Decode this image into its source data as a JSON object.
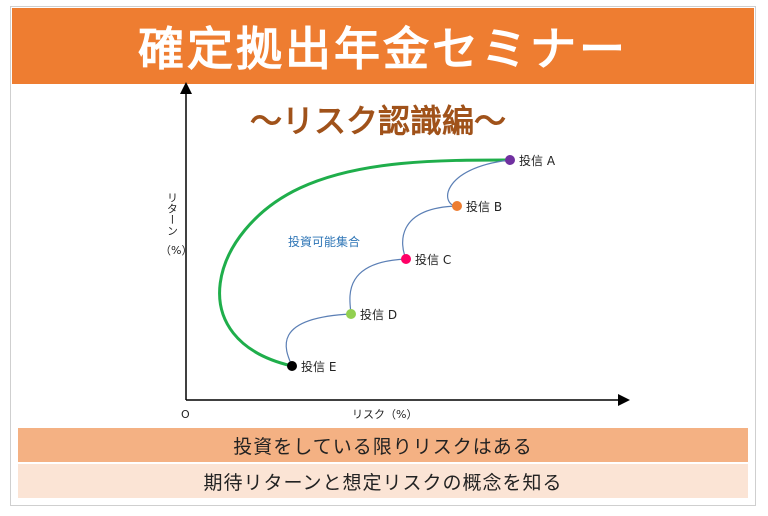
{
  "header": {
    "title": "確定拠出年金セミナー",
    "subtitle": "〜リスク認識編〜"
  },
  "chart": {
    "y_axis_label_line1": "リターン",
    "y_axis_label_line2": "（%）",
    "x_axis_label": "リスク（%）",
    "origin_label": "O",
    "frontier_label": "投資可能集合",
    "points": [
      {
        "label": "投信 A",
        "color": "#7030a0"
      },
      {
        "label": "投信 B",
        "color": "#ed7d31"
      },
      {
        "label": "投信 C",
        "color": "#ff0066"
      },
      {
        "label": "投信 D",
        "color": "#92d050"
      },
      {
        "label": "投信 E",
        "color": "#000000"
      }
    ],
    "frontier_color": "#1fae4b",
    "connector_color": "#5b7fb5"
  },
  "footer": {
    "line1": "投資をしている限りリスクはある",
    "line2": "期待リターンと想定リスクの概念を知る"
  }
}
